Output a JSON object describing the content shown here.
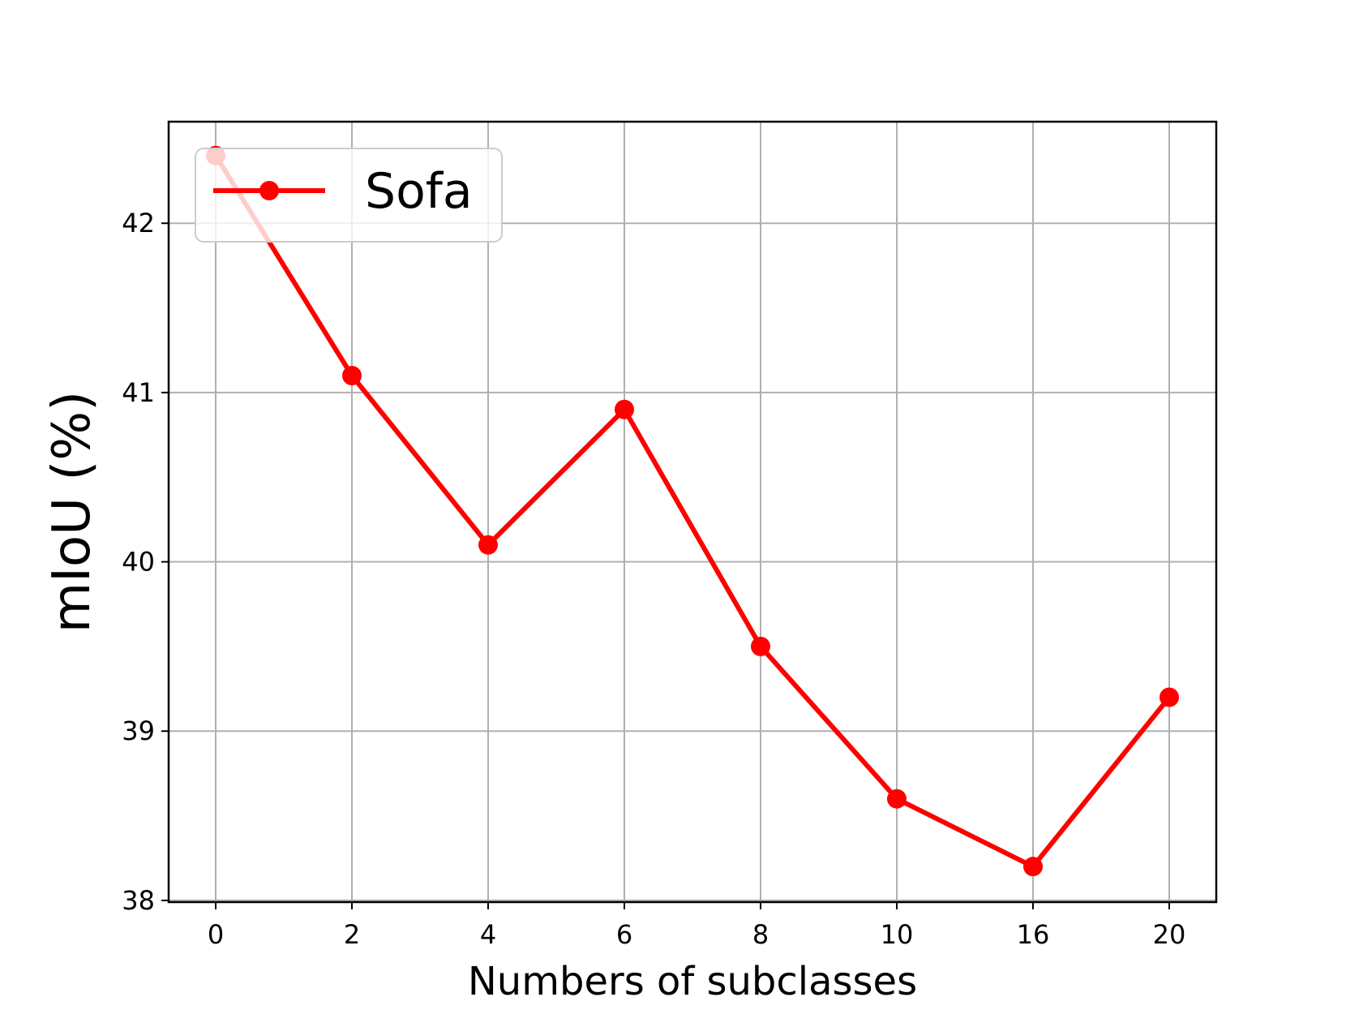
{
  "chart_data": {
    "type": "line",
    "title": "",
    "xlabel": "Numbers of subclasses",
    "ylabel": "mIoU (%)",
    "categories": [
      "0",
      "2",
      "4",
      "6",
      "8",
      "10",
      "16",
      "20"
    ],
    "yticks": [
      "38",
      "39",
      "40",
      "41",
      "42"
    ],
    "ylim": [
      37.99,
      42.6
    ],
    "grid": true,
    "legend_position": "top-left",
    "series": [
      {
        "name": "Sofa",
        "color": "#ff0000",
        "marker": "circle",
        "values": [
          42.4,
          41.1,
          40.1,
          40.9,
          39.5,
          38.6,
          38.2,
          39.2
        ]
      }
    ]
  }
}
